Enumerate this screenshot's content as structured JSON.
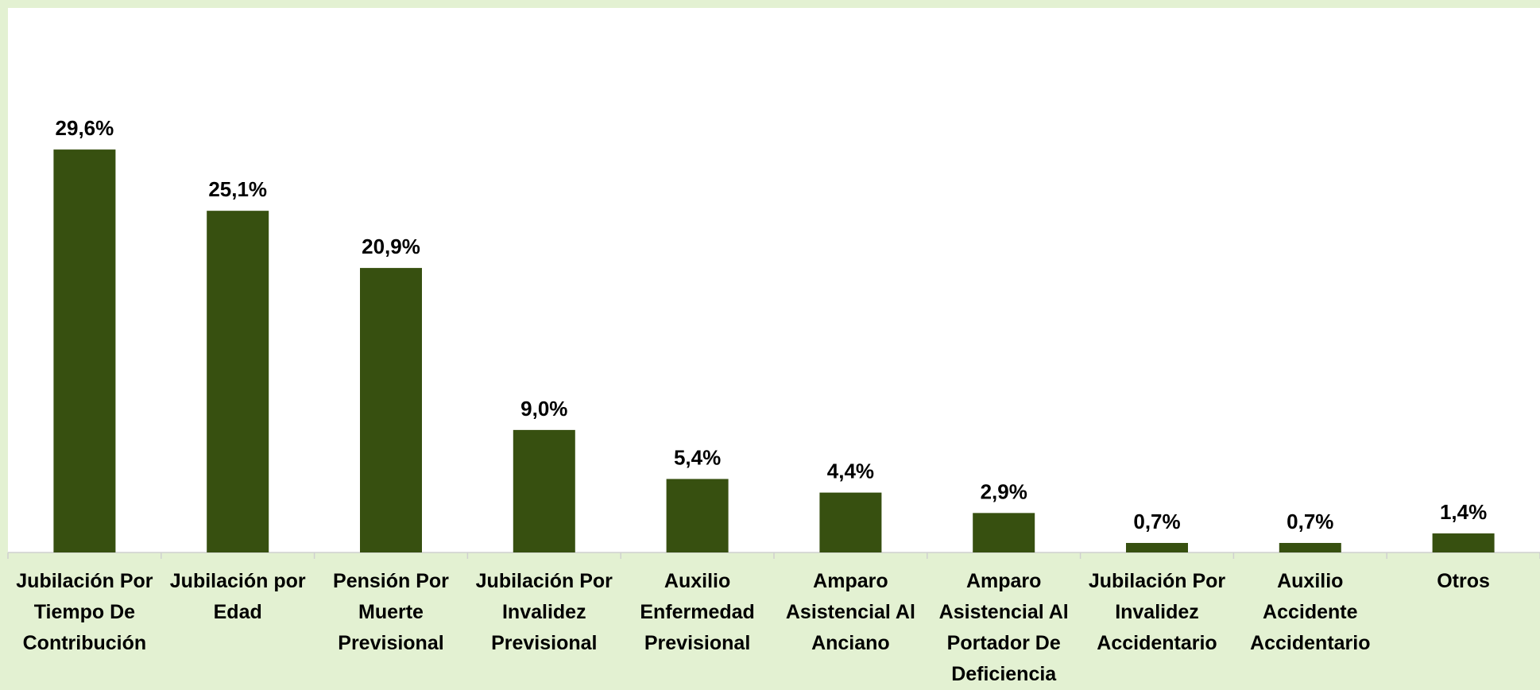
{
  "chart_data": {
    "type": "bar",
    "categories": [
      "Jubilación Por Tiempo De Contribución",
      "Jubilación por Edad",
      "Pensión Por Muerte Previsional",
      "Jubilación Por Invalidez Previsional",
      "Auxilio Enfermedad Previsional",
      "Amparo Asistencial Al Anciano",
      "Amparo Asistencial Al Portador De Deficiencia",
      "Jubilación Por Invalidez Accidentario",
      "Auxilio Accidente Accidentario",
      "Otros"
    ],
    "values": [
      29.6,
      25.1,
      20.9,
      9.0,
      5.4,
      4.4,
      2.9,
      0.7,
      0.7,
      1.4
    ],
    "value_labels": [
      "29,6%",
      "25,1%",
      "20,9%",
      "9,0%",
      "5,4%",
      "4,4%",
      "2,9%",
      "0,7%",
      "0,7%",
      "1,4%"
    ],
    "color": "#375010",
    "ylim": [
      0,
      40
    ]
  }
}
